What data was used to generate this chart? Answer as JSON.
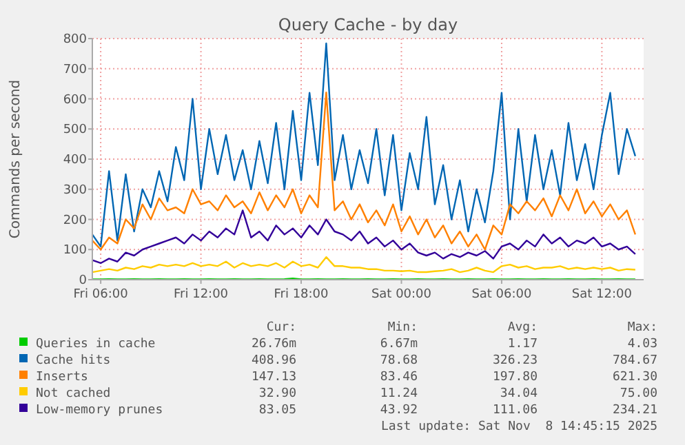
{
  "chart_data": {
    "type": "line",
    "title": "Query Cache - by day",
    "ylabel": "Commands per second",
    "x": [
      "2025-11-07T05:30",
      "2025-11-07T06:00",
      "2025-11-07T06:30",
      "2025-11-07T07:00",
      "2025-11-07T07:30",
      "2025-11-07T08:00",
      "2025-11-07T08:30",
      "2025-11-07T09:00",
      "2025-11-07T09:30",
      "2025-11-07T10:00",
      "2025-11-07T10:30",
      "2025-11-07T11:00",
      "2025-11-07T11:30",
      "2025-11-07T12:00",
      "2025-11-07T12:30",
      "2025-11-07T13:00",
      "2025-11-07T13:30",
      "2025-11-07T14:00",
      "2025-11-07T14:30",
      "2025-11-07T15:00",
      "2025-11-07T15:30",
      "2025-11-07T16:00",
      "2025-11-07T16:30",
      "2025-11-07T17:00",
      "2025-11-07T17:30",
      "2025-11-07T18:00",
      "2025-11-07T18:30",
      "2025-11-07T19:00",
      "2025-11-07T19:30",
      "2025-11-07T20:00",
      "2025-11-07T20:30",
      "2025-11-07T21:00",
      "2025-11-07T21:30",
      "2025-11-07T22:00",
      "2025-11-07T22:30",
      "2025-11-07T23:00",
      "2025-11-07T23:30",
      "2025-11-08T00:00",
      "2025-11-08T00:30",
      "2025-11-08T01:00",
      "2025-11-08T01:30",
      "2025-11-08T02:00",
      "2025-11-08T02:30",
      "2025-11-08T03:00",
      "2025-11-08T03:30",
      "2025-11-08T04:00",
      "2025-11-08T04:30",
      "2025-11-08T05:00",
      "2025-11-08T05:30",
      "2025-11-08T06:00",
      "2025-11-08T06:30",
      "2025-11-08T07:00",
      "2025-11-08T07:30",
      "2025-11-08T08:00",
      "2025-11-08T08:30",
      "2025-11-08T09:00",
      "2025-11-08T09:30",
      "2025-11-08T10:00",
      "2025-11-08T10:30",
      "2025-11-08T11:00",
      "2025-11-08T11:30",
      "2025-11-08T12:00",
      "2025-11-08T12:30",
      "2025-11-08T13:00",
      "2025-11-08T13:30",
      "2025-11-08T14:00"
    ],
    "xlim": [
      "2025-11-07T05:30",
      "2025-11-08T14:30"
    ],
    "xticks": [
      {
        "value": "2025-11-07T06:00",
        "label": "Fri 06:00"
      },
      {
        "value": "2025-11-07T12:00",
        "label": "Fri 12:00"
      },
      {
        "value": "2025-11-07T18:00",
        "label": "Fri 18:00"
      },
      {
        "value": "2025-11-08T00:00",
        "label": "Sat 00:00"
      },
      {
        "value": "2025-11-08T06:00",
        "label": "Sat 06:00"
      },
      {
        "value": "2025-11-08T12:00",
        "label": "Sat 12:00"
      }
    ],
    "ylim": [
      0,
      800
    ],
    "yticks": [
      0,
      100,
      200,
      300,
      400,
      500,
      600,
      700,
      800
    ],
    "grid": true,
    "legend": "bottom",
    "line_style": "solid",
    "series": [
      {
        "name": "Queries in cache",
        "color": "#00cc00",
        "values": [
          1,
          1,
          2,
          1,
          1,
          2,
          1,
          1,
          2,
          1,
          1,
          2,
          1,
          1,
          2,
          1,
          1,
          2,
          1,
          1,
          2,
          1,
          1,
          2,
          4,
          1,
          1,
          2,
          1,
          1,
          2,
          1,
          1,
          2,
          1,
          1,
          2,
          1,
          1,
          2,
          1,
          1,
          2,
          1,
          1,
          2,
          1,
          1,
          2,
          1,
          1,
          2,
          1,
          1,
          2,
          1,
          1,
          2,
          1,
          1,
          2,
          1,
          1,
          2,
          1,
          1
        ]
      },
      {
        "name": "Cache hits",
        "color": "#0066b3",
        "values": [
          150,
          110,
          360,
          130,
          350,
          160,
          300,
          240,
          360,
          260,
          440,
          330,
          600,
          300,
          500,
          350,
          480,
          330,
          430,
          300,
          460,
          320,
          520,
          300,
          560,
          330,
          620,
          380,
          784,
          330,
          480,
          300,
          430,
          320,
          500,
          280,
          480,
          230,
          420,
          300,
          540,
          250,
          380,
          200,
          330,
          160,
          300,
          190,
          360,
          620,
          200,
          500,
          260,
          480,
          300,
          430,
          280,
          520,
          330,
          450,
          300,
          480,
          620,
          350,
          500,
          410
        ]
      },
      {
        "name": "Inserts",
        "color": "#ff8000",
        "values": [
          130,
          100,
          140,
          120,
          200,
          170,
          250,
          200,
          270,
          230,
          240,
          220,
          300,
          250,
          260,
          230,
          280,
          240,
          260,
          220,
          290,
          230,
          280,
          240,
          300,
          220,
          280,
          240,
          621,
          230,
          260,
          200,
          250,
          190,
          230,
          180,
          250,
          160,
          210,
          150,
          200,
          140,
          180,
          120,
          160,
          110,
          150,
          100,
          180,
          150,
          250,
          220,
          260,
          230,
          270,
          210,
          280,
          230,
          300,
          220,
          260,
          210,
          250,
          200,
          230,
          150
        ]
      },
      {
        "name": "Not cached",
        "color": "#ffcc00",
        "values": [
          25,
          30,
          35,
          30,
          40,
          35,
          45,
          40,
          50,
          45,
          50,
          45,
          55,
          45,
          50,
          45,
          60,
          40,
          55,
          45,
          50,
          45,
          55,
          40,
          60,
          45,
          50,
          40,
          75,
          45,
          45,
          40,
          40,
          35,
          35,
          30,
          30,
          28,
          30,
          25,
          25,
          28,
          30,
          35,
          25,
          30,
          40,
          30,
          25,
          45,
          50,
          40,
          45,
          35,
          40,
          40,
          45,
          35,
          40,
          35,
          40,
          35,
          40,
          30,
          35,
          33
        ]
      },
      {
        "name": "Low-memory prunes",
        "color": "#330099",
        "values": [
          65,
          55,
          70,
          60,
          90,
          80,
          100,
          110,
          120,
          130,
          140,
          120,
          150,
          130,
          160,
          140,
          170,
          150,
          230,
          140,
          160,
          130,
          180,
          150,
          170,
          140,
          180,
          150,
          200,
          160,
          150,
          130,
          160,
          120,
          140,
          110,
          130,
          100,
          120,
          90,
          80,
          90,
          70,
          85,
          75,
          90,
          80,
          95,
          70,
          110,
          120,
          100,
          130,
          110,
          150,
          120,
          140,
          110,
          130,
          120,
          140,
          110,
          120,
          100,
          110,
          85
        ]
      }
    ],
    "annotations": [
      "Cur:",
      "Min:",
      "Avg:",
      "Max:",
      "26.76m",
      "6.67m",
      "1.17",
      "4.03",
      "408.96",
      "78.68",
      "326.23",
      "784.67",
      "147.13",
      "83.46",
      "197.80",
      "621.30",
      "32.90",
      "11.24",
      "34.04",
      "75.00",
      "83.05",
      "43.92",
      "111.06",
      "234.21",
      "Last update: Sat Nov  8 14:45:15 2025"
    ]
  }
}
